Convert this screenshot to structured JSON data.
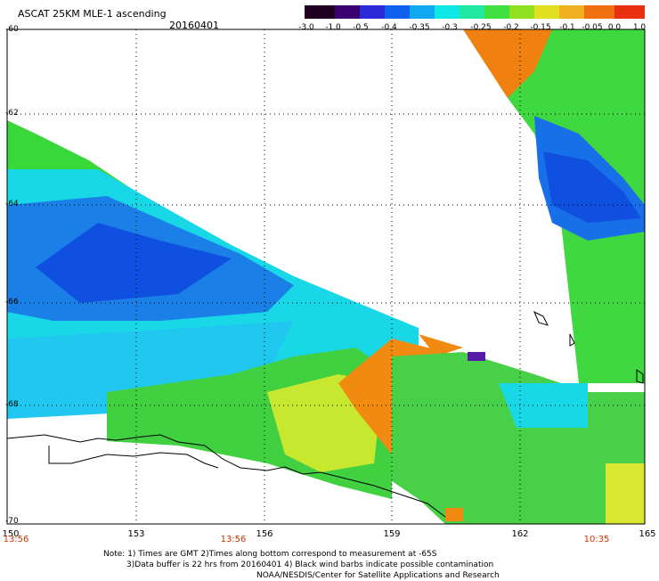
{
  "header": {
    "title": "ASCAT 25KM MLE-1 ascending",
    "date": "20160401"
  },
  "colorbar": {
    "labels": [
      "-3.0",
      "-1.0",
      "-0.5",
      "-0.4",
      "-0.35",
      "-0.3",
      "-0.25",
      "-0.2",
      "-0.15",
      "-0.1",
      "-0.05",
      "0.0",
      "1.0"
    ],
    "colors": [
      "#200020",
      "#3a0070",
      "#5a1aa8",
      "#2a2ad8",
      "#1060f0",
      "#10a8f0",
      "#10e8e8",
      "#20e8a0",
      "#40e040",
      "#90e020",
      "#e0e020",
      "#f0b020",
      "#f07010",
      "#e83010"
    ]
  },
  "map": {
    "lat_labels": [
      "-60",
      "-62",
      "-64",
      "-66",
      "-68",
      "-70"
    ],
    "lon_labels": [
      "150",
      "153",
      "156",
      "159",
      "162",
      "165"
    ],
    "time_labels": [
      "13:56",
      "13:56",
      "10:35"
    ]
  },
  "notes": {
    "line1": "Note: 1) Times are GMT 2)Times along bottom correspond to measurement at -65S",
    "line2": "3)Data buffer is 22 hrs from 20160401 4) Black wind barbs indicate possible contamination",
    "line3": "NOAA/NESDIS/Center for Satellite Applications and Research"
  }
}
